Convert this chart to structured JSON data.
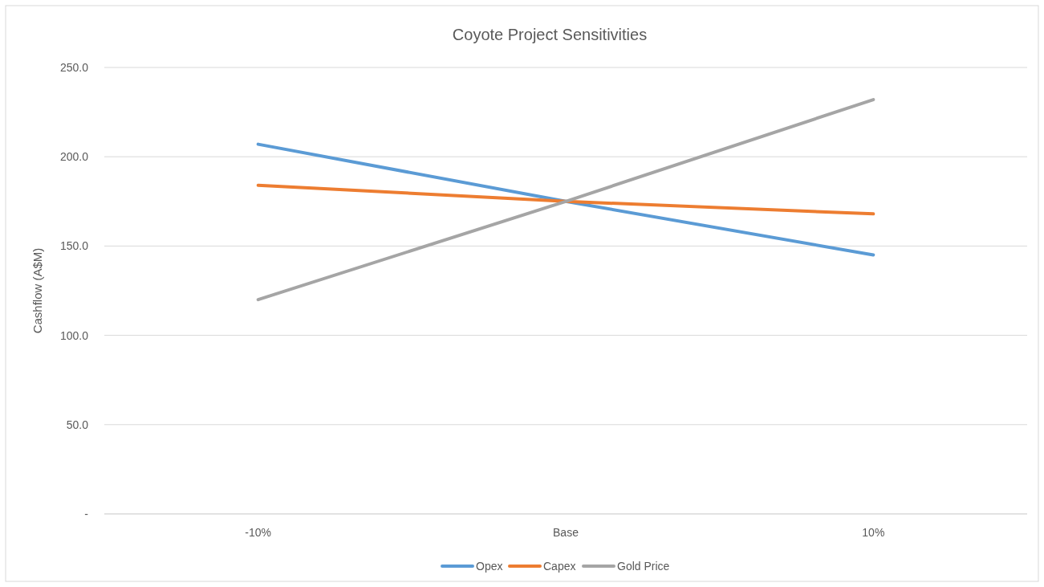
{
  "chart_data": {
    "type": "line",
    "title": "Coyote Project Sensitivities",
    "ylabel": "Cashflow (A$M)",
    "categories": [
      "-10%",
      "Base",
      "10%"
    ],
    "series": [
      {
        "name": "Opex",
        "color": "#5b9bd5",
        "values": [
          207,
          175,
          145
        ]
      },
      {
        "name": "Capex",
        "color": "#ed7d31",
        "values": [
          184,
          175,
          168
        ]
      },
      {
        "name": "Gold Price",
        "color": "#a5a5a5",
        "values": [
          120,
          175,
          232
        ]
      }
    ],
    "ylim": [
      0,
      250
    ],
    "yticks": [
      {
        "value": 0,
        "label": "-"
      },
      {
        "value": 50,
        "label": "50.0"
      },
      {
        "value": 100,
        "label": "100.0"
      },
      {
        "value": 150,
        "label": "150.0"
      },
      {
        "value": 200,
        "label": "200.0"
      },
      {
        "value": 250,
        "label": "250.0"
      }
    ],
    "grid": "y",
    "legend": "bottom",
    "marker": "none",
    "line_style": "solid"
  }
}
